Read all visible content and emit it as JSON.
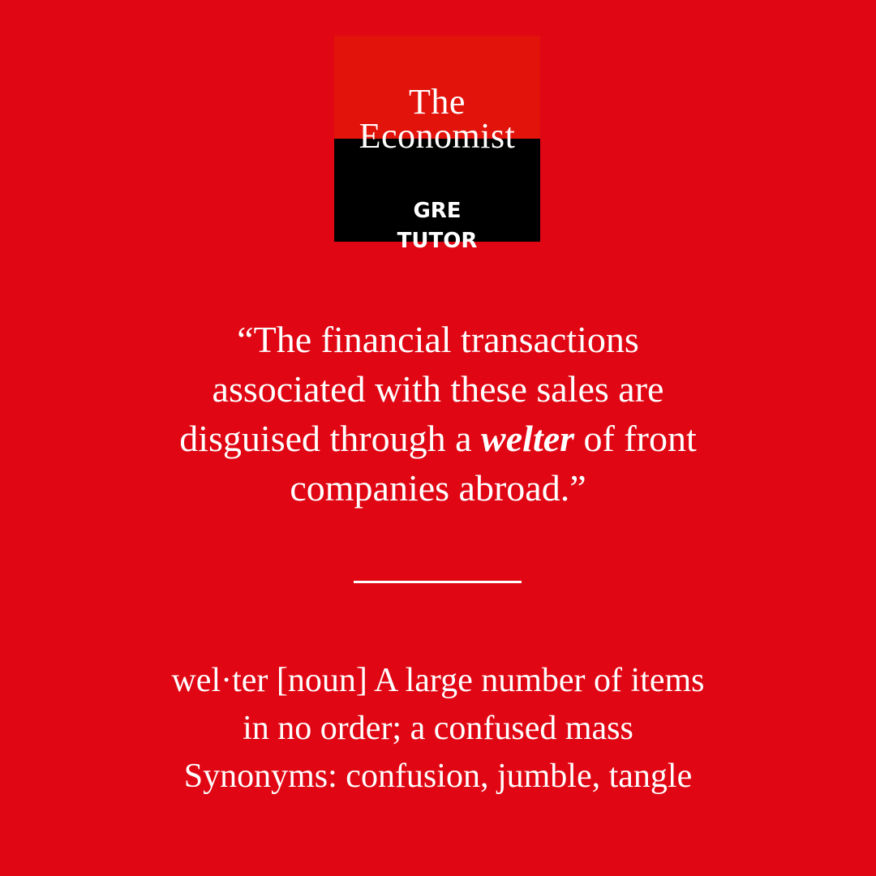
{
  "colors": {
    "background": "#e00613",
    "logo_top": "#e2130b",
    "logo_bottom": "#000000",
    "text": "#ffffff"
  },
  "logo": {
    "line1": "The",
    "line2": "Economist",
    "line3": "GRE",
    "line4": "TUTOR"
  },
  "quote": {
    "line1": "“The financial transactions",
    "line2": "associated with these sales are",
    "line3_before": "disguised through a ",
    "keyword": "welter",
    "line3_after": " of front",
    "line4": "companies abroad.”"
  },
  "definition": {
    "line1": "wel·ter [noun] A large number of items",
    "line2": "in no order; a confused mass",
    "line3": "Synonyms: confusion, jumble, tangle"
  }
}
